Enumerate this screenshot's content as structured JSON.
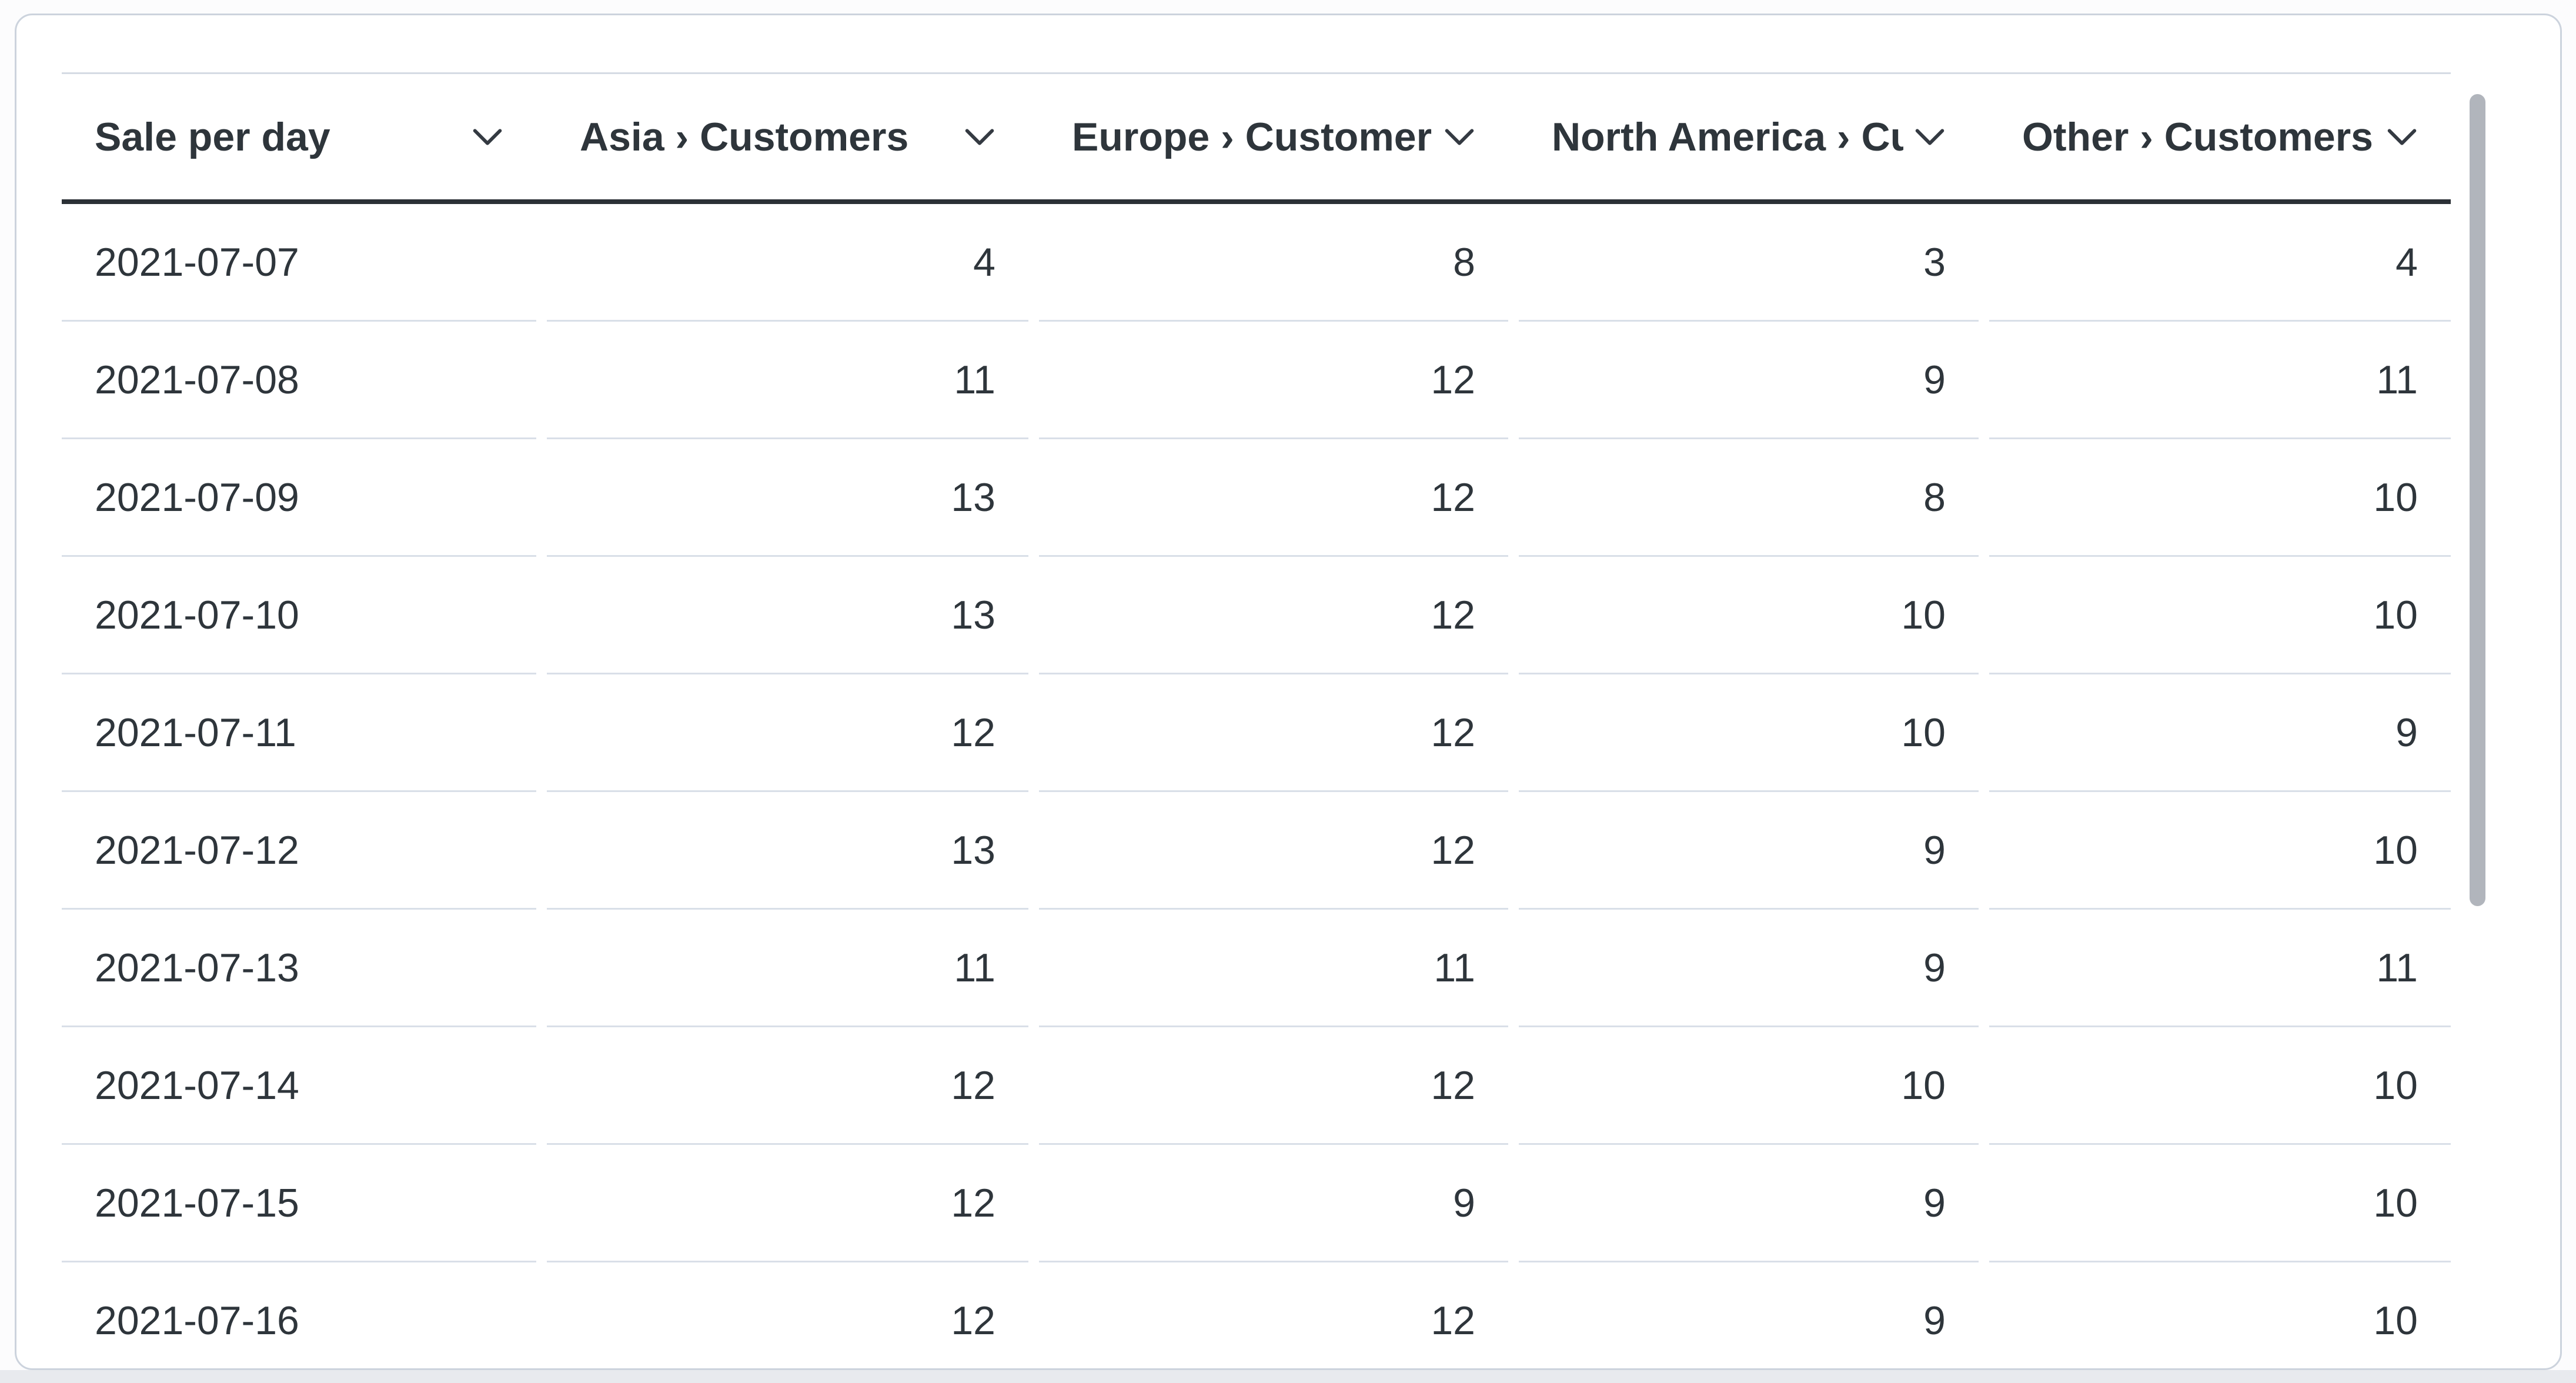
{
  "colors": {
    "text": "#2e353b",
    "header_border": "#2b3036",
    "row_divider": "#d9dfe8",
    "table_top_border": "#d5dbe4",
    "card_border": "#ccd3dd",
    "card_bg": "#ffffff",
    "page_bg": "#fcfcfd",
    "page_bottom_strip": "#e8eaee",
    "scrollbar_thumb": "#b1b5bc"
  },
  "icons": {
    "column_sort": "chevron-down-icon"
  },
  "chart_data": {
    "type": "table",
    "title": "Sale per day",
    "columns": [
      {
        "label": "Sale per day",
        "value_align": "left"
      },
      {
        "label": "Asia › Customers",
        "value_align": "right"
      },
      {
        "label": "Europe › Customers",
        "value_align": "right"
      },
      {
        "label": "North America › Customers",
        "value_align": "right"
      },
      {
        "label": "Other › Customers",
        "value_align": "right"
      }
    ],
    "rows": [
      [
        "2021-07-07",
        4,
        8,
        3,
        4
      ],
      [
        "2021-07-08",
        11,
        12,
        9,
        11
      ],
      [
        "2021-07-09",
        13,
        12,
        8,
        10
      ],
      [
        "2021-07-10",
        13,
        12,
        10,
        10
      ],
      [
        "2021-07-11",
        12,
        12,
        10,
        9
      ],
      [
        "2021-07-12",
        13,
        12,
        9,
        10
      ],
      [
        "2021-07-13",
        11,
        11,
        9,
        11
      ],
      [
        "2021-07-14",
        12,
        12,
        10,
        10
      ],
      [
        "2021-07-15",
        12,
        9,
        9,
        10
      ],
      [
        "2021-07-16",
        12,
        12,
        9,
        10
      ]
    ],
    "layout": {
      "header_truncated": true,
      "last_row_clipped": true,
      "scrollbar_visible": true
    }
  }
}
